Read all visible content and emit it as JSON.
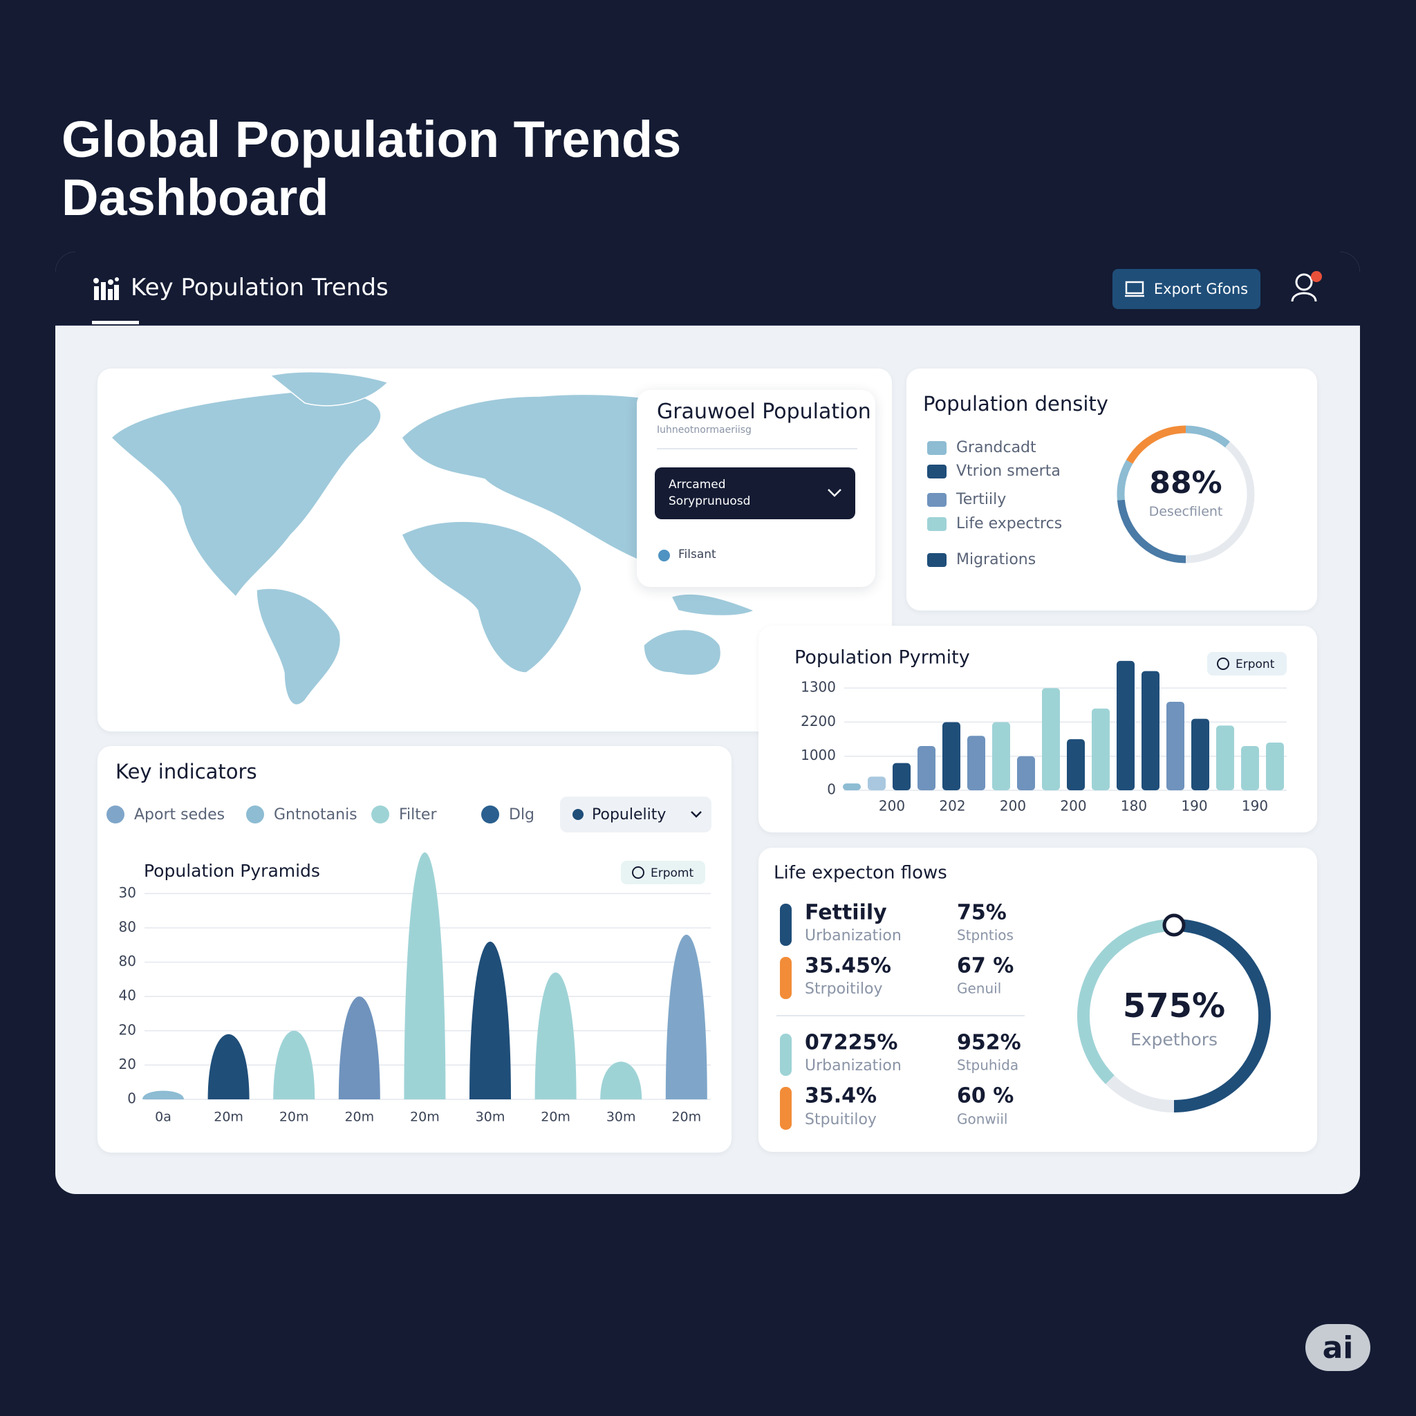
{
  "header": {
    "title_line1": "Global Population Trends",
    "title_line2": "Dashboard"
  },
  "nav": {
    "title": "Key Population Trends",
    "export": "Export Gfons"
  },
  "map_popup": {
    "title": "Grauwoel Population",
    "subtitle": "Iuhneotnormaeriisg",
    "dropdown_line1": "Arrcamed",
    "dropdown_line2": "Soryprunuosd",
    "filter": "Filsant"
  },
  "density": {
    "title": "Population density",
    "legend": [
      {
        "label": "Grandcadt",
        "color": "#8dbcd3"
      },
      {
        "label": "Vtrion smerta",
        "color": "#1f4e79"
      },
      {
        "label": "Tertiily",
        "color": "#6f93bd"
      },
      {
        "label": "Life expectrcs",
        "color": "#9ed3d6"
      },
      {
        "label": "Migrations",
        "color": "#1f4e79"
      }
    ],
    "donut_value": "88%",
    "donut_label": "Desecfilent"
  },
  "bar_chart": {
    "type": "bar",
    "title": "Population Pyrmity",
    "button": "Erpont",
    "y_labels": [
      "1300",
      "2200",
      "1000",
      "0"
    ],
    "x_labels": [
      "200",
      "202",
      "200",
      "200",
      "180",
      "190",
      "190"
    ],
    "ylim": [
      0,
      4
    ],
    "values": [
      0.2,
      0.4,
      0.8,
      1.3,
      2.0,
      1.6,
      2.0,
      1.0,
      3.0,
      1.5,
      2.4,
      3.8,
      3.5,
      2.6,
      2.1,
      1.9,
      1.3,
      1.4
    ],
    "colors": [
      "#8dbcd3",
      "#a9c8df",
      "#1f4e79",
      "#6f93bd",
      "#1f4e79",
      "#6f93bd",
      "#9ed3d6",
      "#6f93bd",
      "#9ed3d6",
      "#1f4e79",
      "#9ed3d6",
      "#1f4e79",
      "#1f4e79",
      "#6f93bd",
      "#1f4e79",
      "#9ed3d6",
      "#9ed3d6",
      "#9ed3d6"
    ]
  },
  "indicators": {
    "title": "Key indicators",
    "filters": [
      {
        "label": "Aport sedes",
        "color": "#7fa6c9"
      },
      {
        "label": "Gntnotanis",
        "color": "#8dbcd3"
      },
      {
        "label": "Filter",
        "color": "#9ed3d6"
      },
      {
        "label": "Dlg",
        "color": "#2a5f8f"
      }
    ],
    "dropdown": "Populelity"
  },
  "pyramids": {
    "type": "bar",
    "title": "Population Pyramids",
    "button": "Erpomt",
    "y_labels": [
      "30",
      "80",
      "80",
      "40",
      "20",
      "20",
      "0"
    ],
    "categories": [
      "0a",
      "20m",
      "20m",
      "20m",
      "20m",
      "30m",
      "20m",
      "30m",
      "20m"
    ],
    "ylim": [
      0,
      7.3
    ],
    "values": [
      0.25,
      1.9,
      2.0,
      3.0,
      7.2,
      4.6,
      3.7,
      1.1,
      4.8
    ],
    "colors": [
      "#8dbcd3",
      "#1f4e79",
      "#9ed3d6",
      "#6f93bd",
      "#9ed3d6",
      "#1f4e79",
      "#9ed3d6",
      "#9ed3d6",
      "#7fa6c9"
    ]
  },
  "life": {
    "title": "Life expecton flows",
    "items": [
      {
        "value": "Fettiily",
        "label": "Urbanization",
        "value2": "75%",
        "label2": "Stpntios",
        "color": "#1f4e79"
      },
      {
        "value": "35.45%",
        "label": "Strpoitiloy",
        "value2": "67 %",
        "label2": "Genuil",
        "color": "#f28c38"
      },
      {
        "value": "07225%",
        "label": "Urbanization",
        "value2": "952%",
        "label2": "Stpuhida",
        "color": "#9ed3d6"
      },
      {
        "value": "35.4%",
        "label": "Stpuitiloy",
        "value2": "60 %",
        "label2": "Gonwiil",
        "color": "#f28c38"
      }
    ],
    "donut_value": "575%",
    "donut_label": "Expethors"
  },
  "badge": "ai"
}
